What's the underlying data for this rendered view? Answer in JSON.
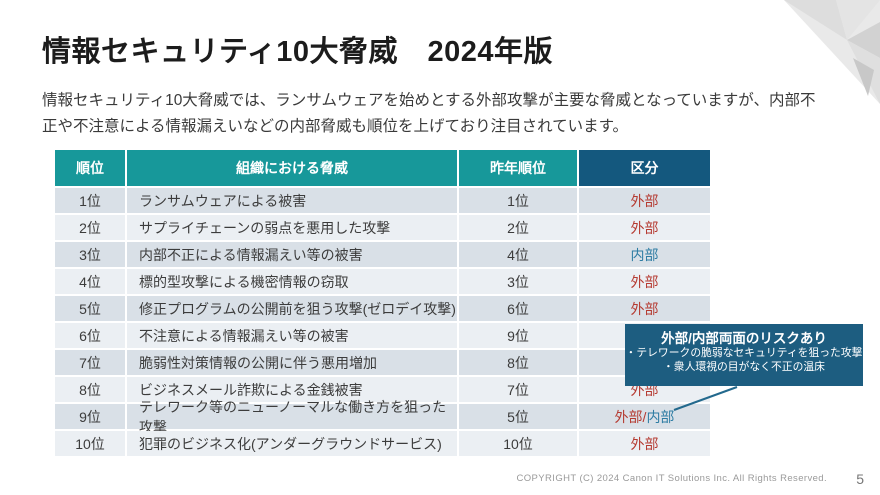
{
  "slide": {
    "title": "情報セキュリティ10大脅威　2024年版",
    "intro_line1": "情報セキュリティ10大脅威では、ランサムウェアを始めとする外部攻撃が主要な脅威となっていますが、内部不",
    "intro_line2": "正や不注意による情報漏えいなどの内部脅威も順位を上げており注目されています。",
    "copyright": "COPYRIGHT (C) 2024 Canon IT Solutions Inc. All Rights Reserved.",
    "page_number": "5"
  },
  "colors": {
    "header_teal": "#17989a",
    "header_dark_blue": "#14587e",
    "row_odd": "#d9e0e7",
    "row_even": "#ebeff3",
    "external_red": "#b53a31",
    "internal_blue": "#2d7ca3",
    "callout_bg": "#1d5d80",
    "pointer_line": "#23698d"
  },
  "table": {
    "headers": [
      "順位",
      "組織における脅威",
      "昨年順位",
      "区分"
    ],
    "rows": [
      {
        "rank": "1位",
        "threat": "ランサムウェアによる被害",
        "last_year": "1位",
        "category": [
          {
            "text": "外部",
            "type": "external"
          }
        ]
      },
      {
        "rank": "2位",
        "threat": "サプライチェーンの弱点を悪用した攻撃",
        "last_year": "2位",
        "category": [
          {
            "text": "外部",
            "type": "external"
          }
        ]
      },
      {
        "rank": "3位",
        "threat": "内部不正による情報漏えい等の被害",
        "last_year": "4位",
        "category": [
          {
            "text": "内部",
            "type": "internal"
          }
        ]
      },
      {
        "rank": "4位",
        "threat": "標的型攻撃による機密情報の窃取",
        "last_year": "3位",
        "category": [
          {
            "text": "外部",
            "type": "external"
          }
        ]
      },
      {
        "rank": "5位",
        "threat": "修正プログラムの公開前を狙う攻撃(ゼロデイ攻撃)",
        "last_year": "6位",
        "category": [
          {
            "text": "外部",
            "type": "external"
          }
        ]
      },
      {
        "rank": "6位",
        "threat": "不注意による情報漏えい等の被害",
        "last_year": "9位",
        "category": []
      },
      {
        "rank": "7位",
        "threat": "脆弱性対策情報の公開に伴う悪用増加",
        "last_year": "8位",
        "category": []
      },
      {
        "rank": "8位",
        "threat": "ビジネスメール詐欺による金銭被害",
        "last_year": "7位",
        "category": [
          {
            "text": "外部",
            "type": "external"
          }
        ]
      },
      {
        "rank": "9位",
        "threat": "テレワーク等のニューノーマルな働き方を狙った攻撃",
        "last_year": "5位",
        "category": [
          {
            "text": "外部/",
            "type": "external"
          },
          {
            "text": "内部",
            "type": "internal"
          }
        ]
      },
      {
        "rank": "10位",
        "threat": "犯罪のビジネス化(アンダーグラウンドサービス)",
        "last_year": "10位",
        "category": [
          {
            "text": "外部",
            "type": "external"
          }
        ]
      }
    ]
  },
  "callout": {
    "title": "外部/内部両面のリスクあり",
    "bullets": [
      "・テレワークの脆弱なセキュリティを狙った攻撃",
      "・衆人環視の目がなく不正の温床"
    ]
  }
}
